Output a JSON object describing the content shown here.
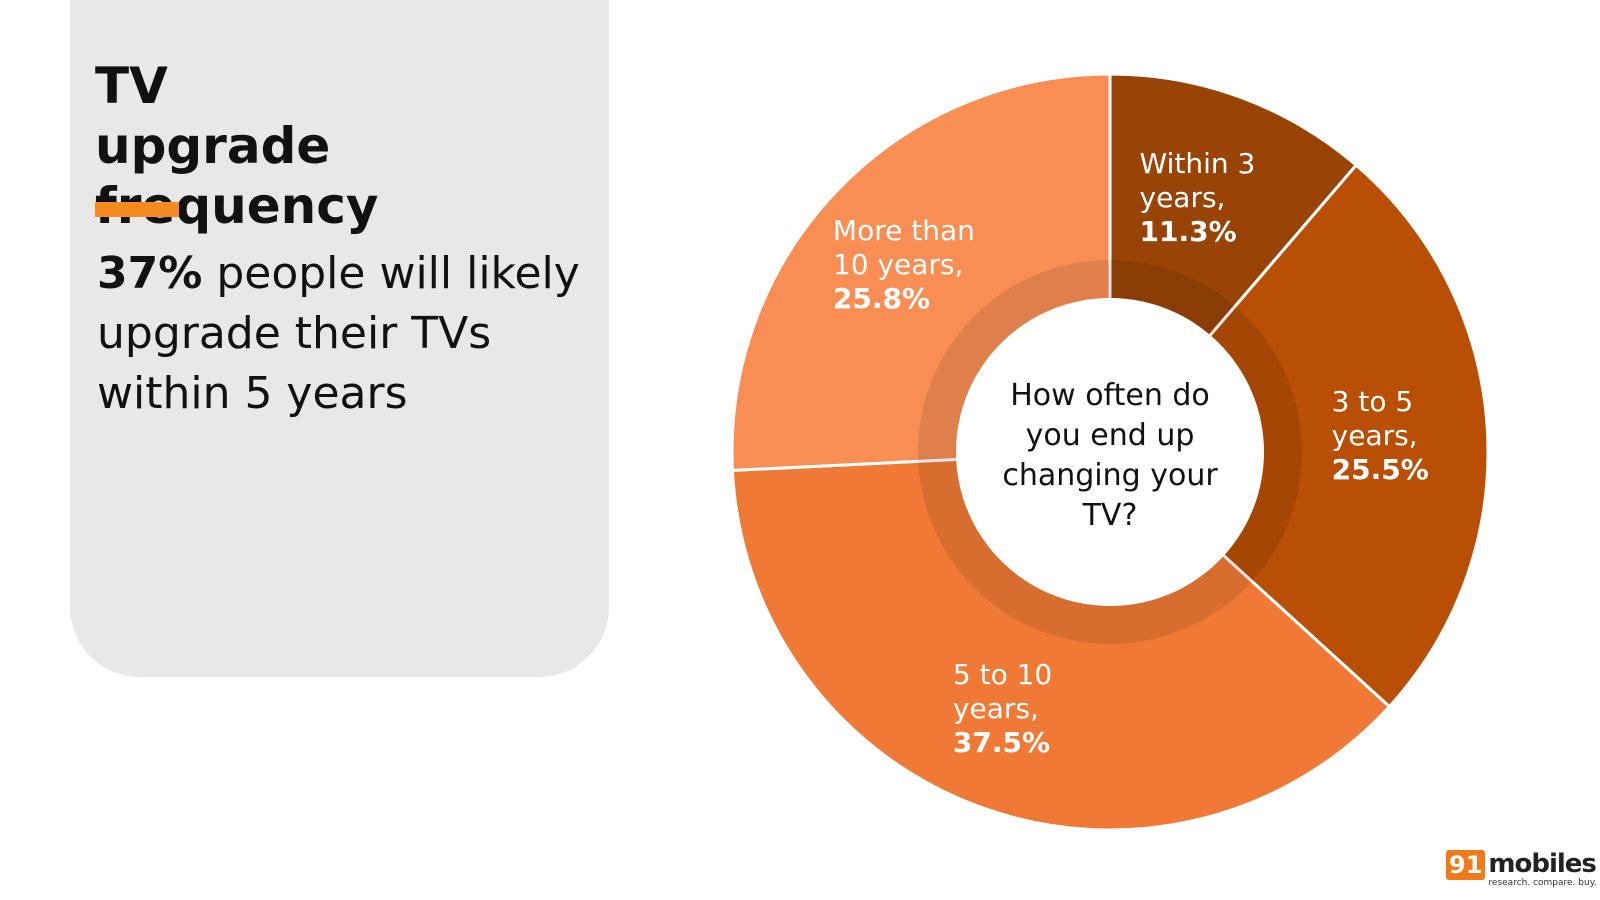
{
  "title": "TV upgrade frequency",
  "headline": {
    "highlight": "37%",
    "text": "people will likely upgrade their TVs within 5 years"
  },
  "chart_data": {
    "type": "pie",
    "center_text": "How often do you end up changing your TV?",
    "categories": [
      "Within 3 years,",
      "3 to 5 years,",
      "5 to 10 years,",
      "More than 10 years,"
    ],
    "values": [
      11.3,
      25.5,
      37.5,
      25.8
    ],
    "value_labels": [
      "11.3%",
      "25.5%",
      "37.5%",
      "25.8%"
    ],
    "colors": [
      "#9a4306",
      "#b84f05",
      "#f07a35",
      "#f98e55"
    ]
  },
  "logo": {
    "number": "91",
    "name": "mobiles",
    "tagline": "research. compare. buy."
  }
}
